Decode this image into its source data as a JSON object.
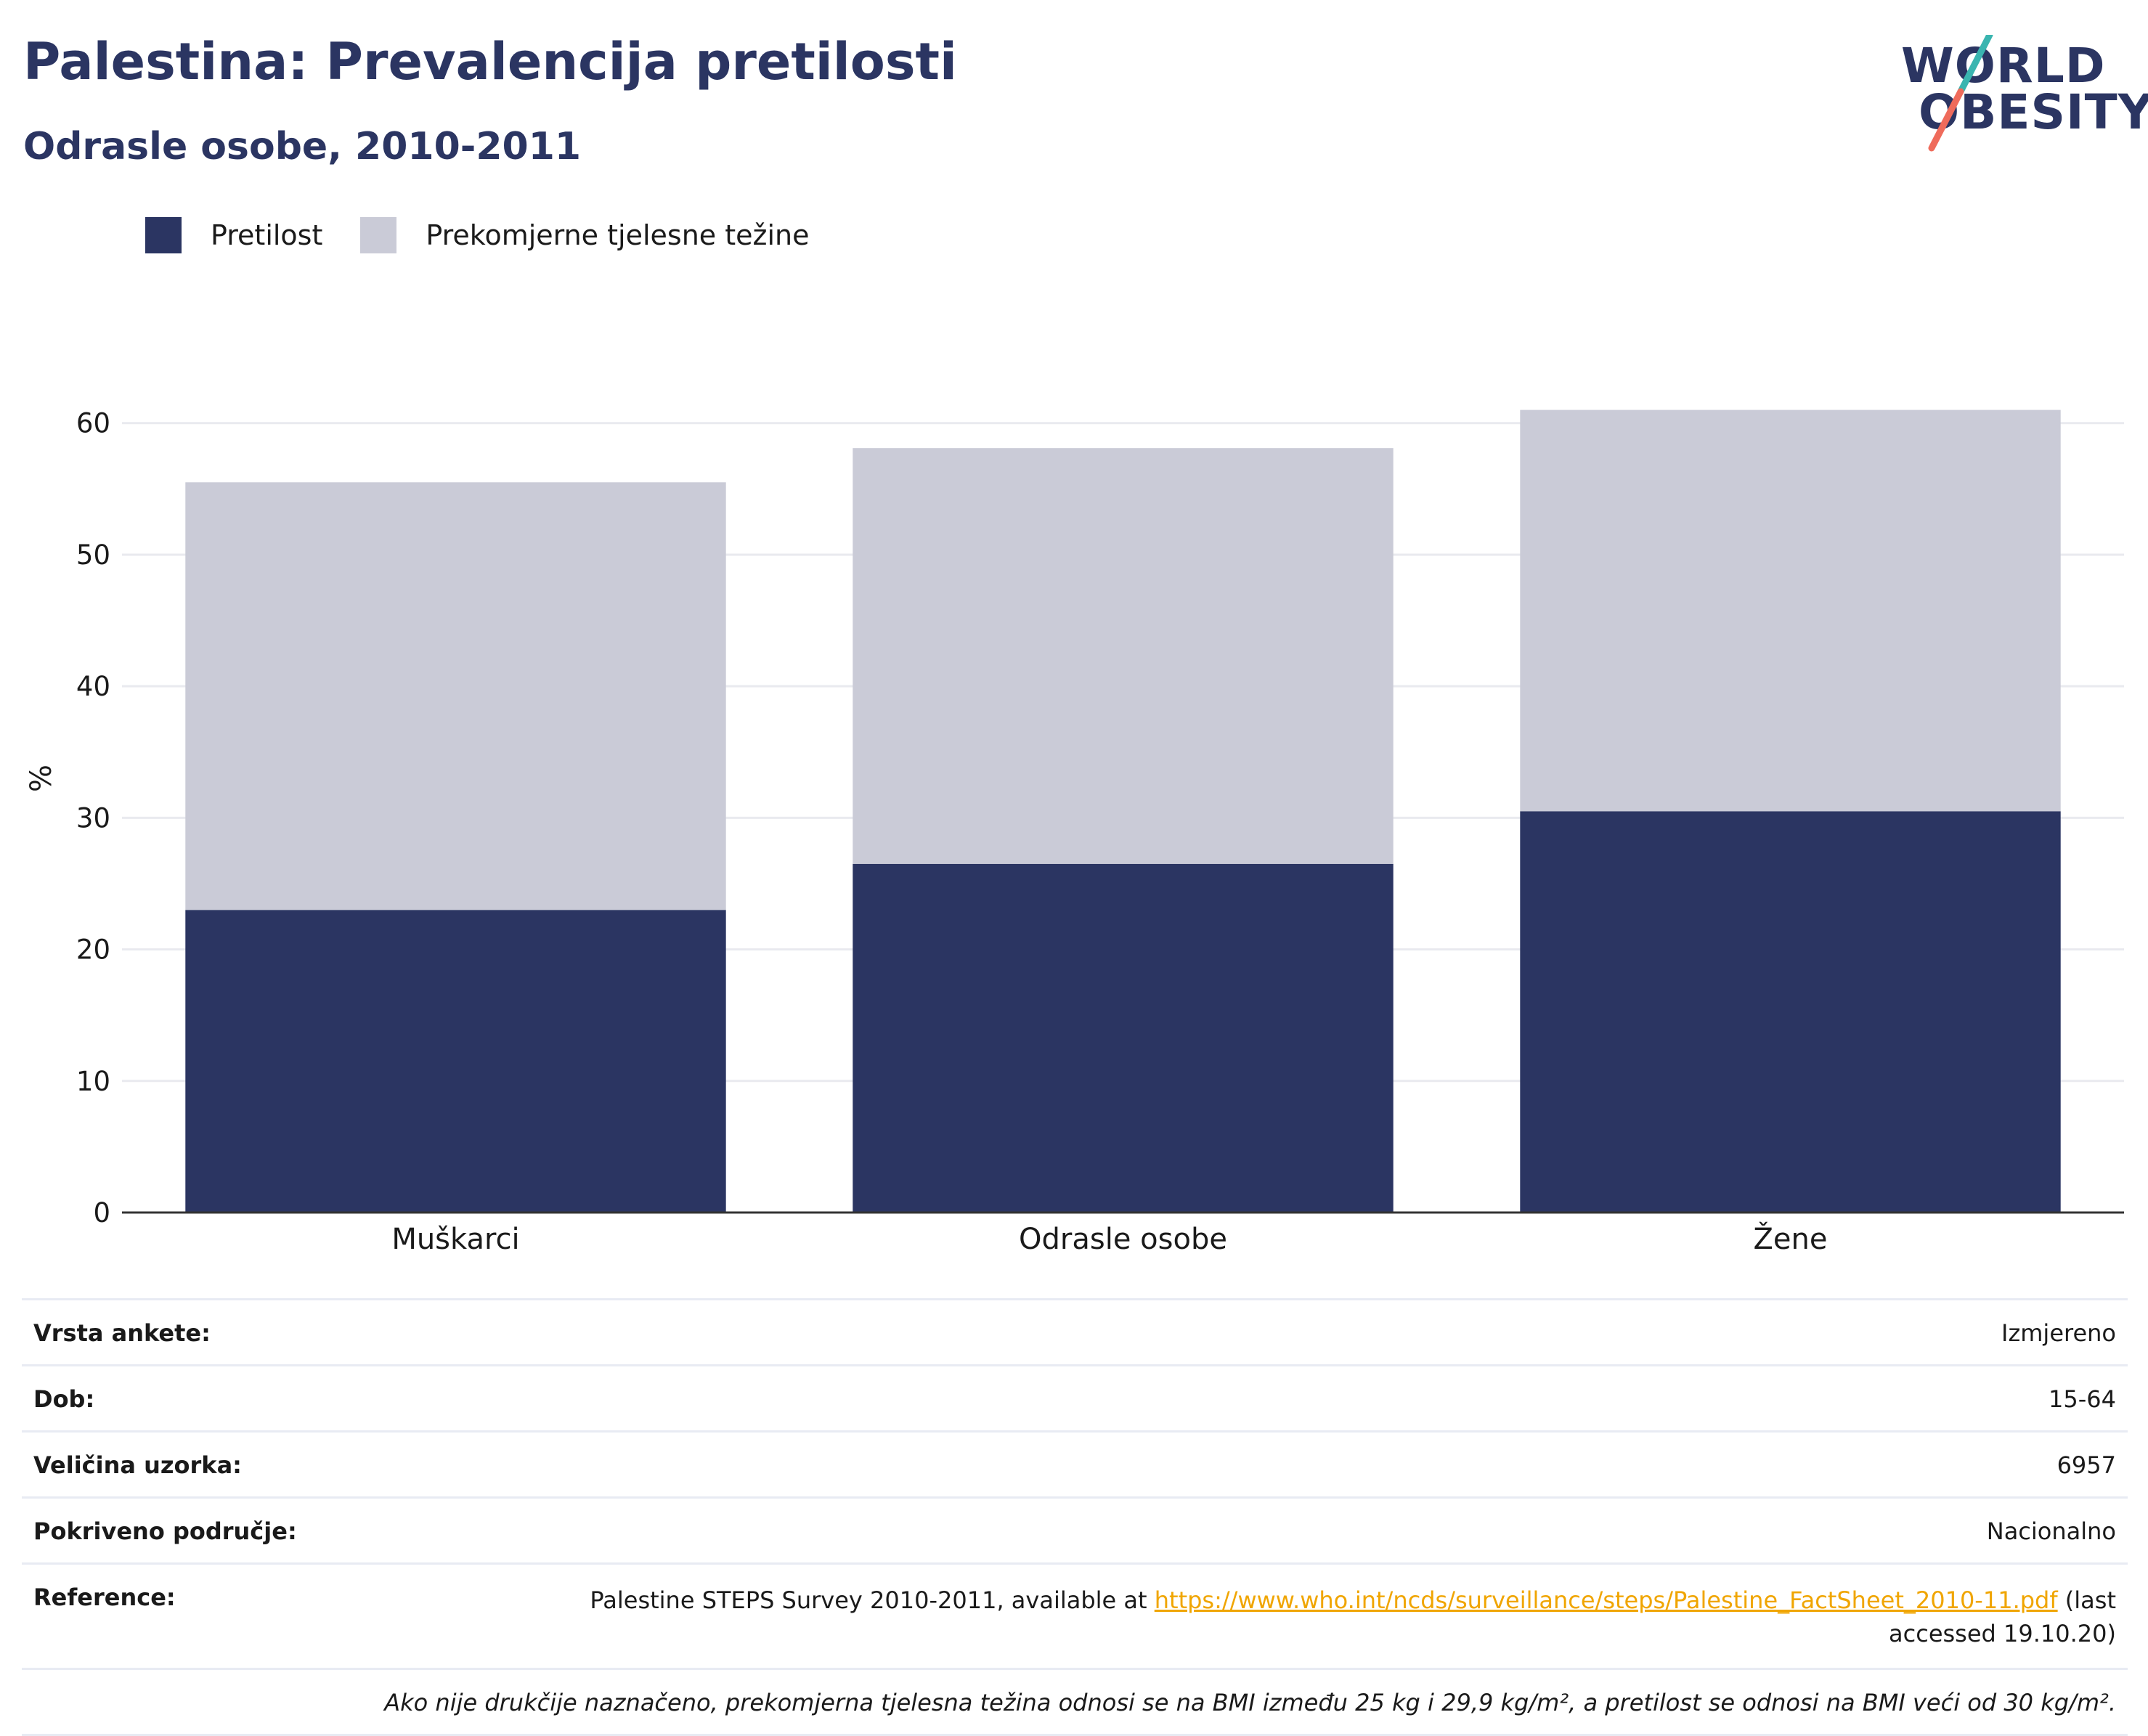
{
  "header": {
    "title": "Palestina: Prevalencija pretilosti",
    "subtitle": "Odrasle osobe, 2010-2011"
  },
  "logo": {
    "line1": "WORLD",
    "line2": "OBESITY",
    "colors": {
      "text": "#2b3562",
      "slash_top": "#3ab5b0",
      "slash_bottom": "#ef6b5b"
    }
  },
  "legend": [
    {
      "label": "Pretilost",
      "color": "#2b3562"
    },
    {
      "label": "Prekomjerne tjelesne težine",
      "color": "#cacbd7"
    }
  ],
  "chart_data": {
    "type": "bar",
    "stacked": true,
    "categories": [
      "Muškarci",
      "Odrasle osobe",
      "Žene"
    ],
    "series": [
      {
        "name": "Pretilost",
        "color": "#2b3562",
        "values": [
          23.0,
          26.5,
          30.5
        ]
      },
      {
        "name": "Prekomjerne tjelesne težine",
        "color": "#cacbd7",
        "values": [
          32.5,
          31.6,
          30.5
        ]
      }
    ],
    "ylabel": "%",
    "xlabel": "",
    "ylim": [
      0,
      66
    ],
    "yticks": [
      0,
      10,
      20,
      30,
      40,
      50,
      60
    ],
    "grid": true,
    "legend_position": "top-left"
  },
  "meta": {
    "survey_type_label": "Vrsta ankete:",
    "survey_type_value": "Izmjereno",
    "age_label": "Dob:",
    "age_value": "15-64",
    "sample_label": "Veličina uzorka:",
    "sample_value": "6957",
    "coverage_label": "Pokriveno područje:",
    "coverage_value": "Nacionalno",
    "reference_label": "Reference:",
    "reference_prefix": "Palestine STEPS Survey 2010-2011, available at ",
    "reference_link": "https://www.who.int/ncds/surveillance/steps/Palestine_FactSheet_2010-11.pdf",
    "reference_suffix": " (last accessed 19.10.20)",
    "note": "Ako nije drukčije naznačeno, prekomjerna tjelesna težina odnosi se na BMI između 25 kg i 29,9 kg/m², a pretilost se odnosi na BMI veći od 30 kg/m²."
  }
}
